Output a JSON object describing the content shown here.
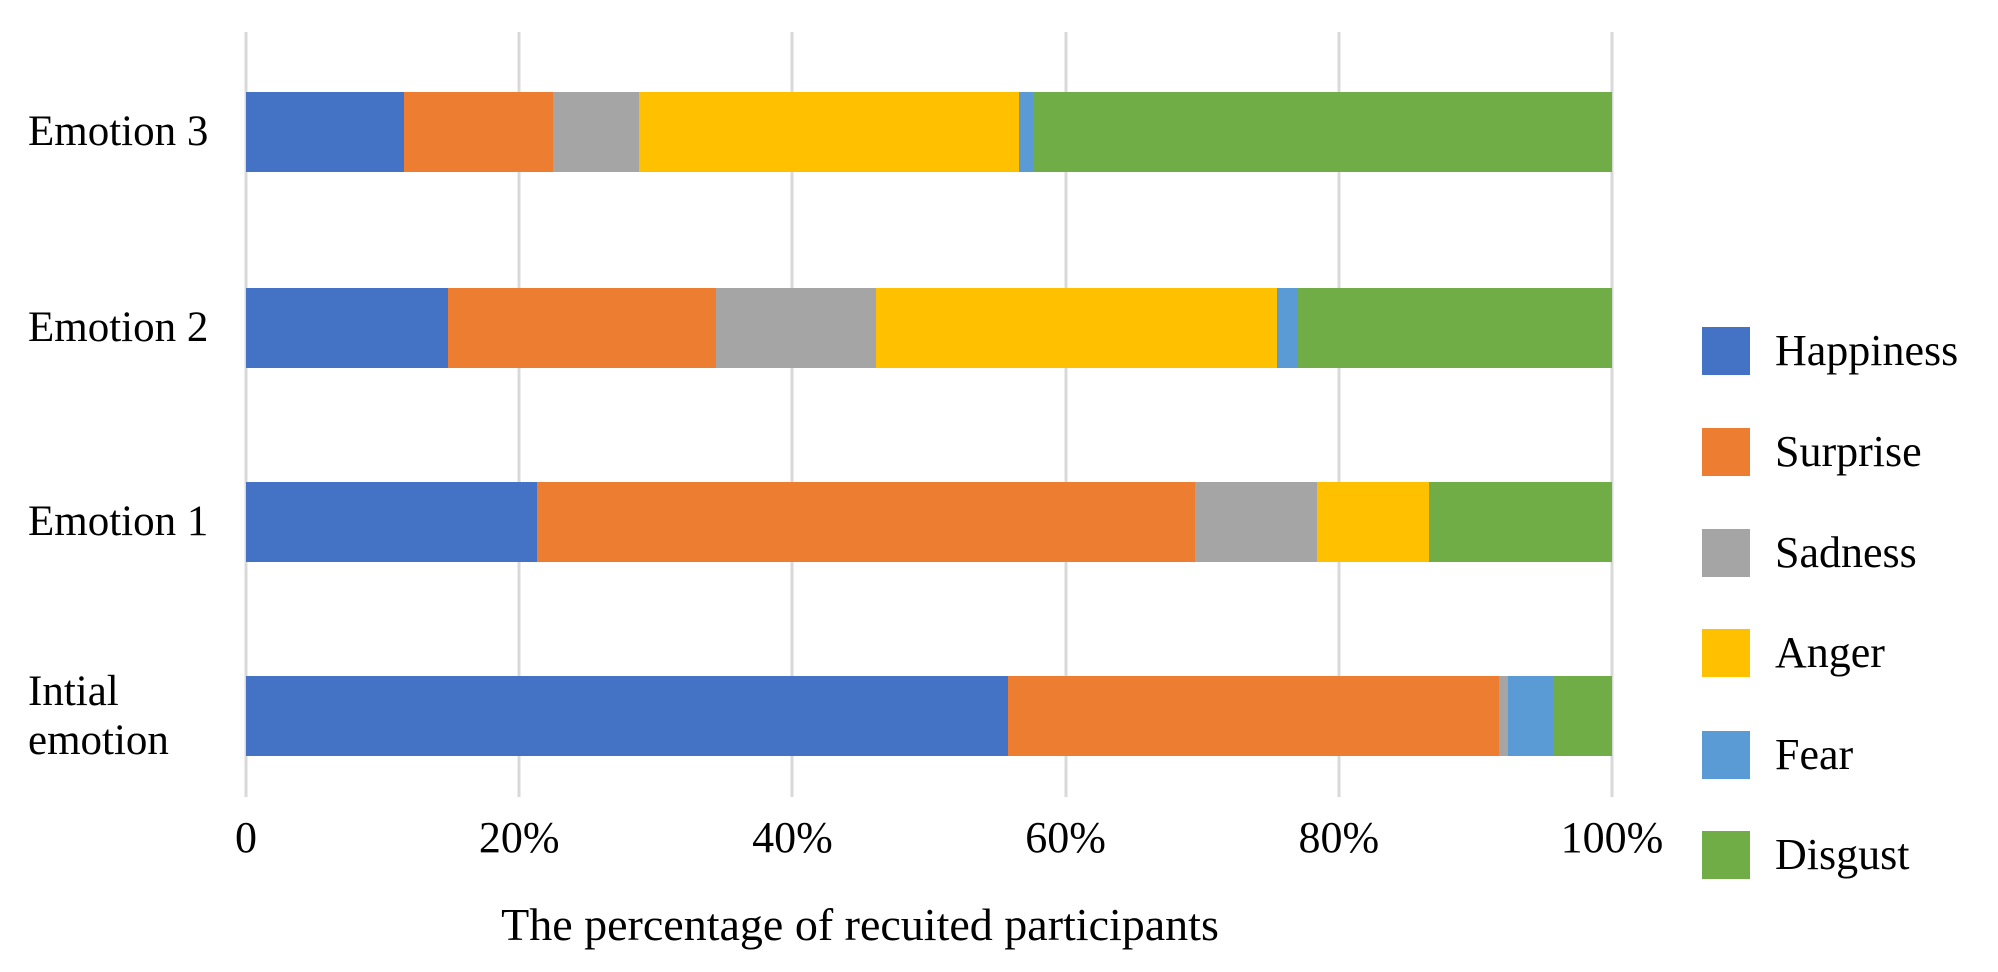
{
  "chart_data": {
    "type": "bar",
    "orientation": "horizontal",
    "stacked": true,
    "title": "",
    "xlabel": "The percentage of recuited participants",
    "ylabel": "",
    "categories": [
      "Emotion 3",
      "Emotion 2",
      "Emotion 1",
      "Intial emotion"
    ],
    "series": [
      {
        "name": "Happiness",
        "color": "#4472C4",
        "values": [
          11.6,
          14.8,
          21.3,
          55.8
        ]
      },
      {
        "name": "Surprise",
        "color": "#ED7D31",
        "values": [
          10.9,
          19.6,
          48.2,
          35.9
        ]
      },
      {
        "name": "Sadness",
        "color": "#A5A5A5",
        "values": [
          6.3,
          11.7,
          8.9,
          0.7
        ]
      },
      {
        "name": "Anger",
        "color": "#FFC000",
        "values": [
          27.8,
          29.4,
          8.2,
          0
        ]
      },
      {
        "name": "Fear",
        "color": "#5B9BD5",
        "values": [
          1.0,
          1.5,
          0,
          3.3
        ]
      },
      {
        "name": "Disgust",
        "color": "#70AD47",
        "values": [
          42.4,
          23.0,
          13.4,
          4.3
        ]
      }
    ],
    "x_ticks": [
      "0",
      "20%",
      "40%",
      "60%",
      "80%",
      "100%"
    ],
    "xlim": [
      0,
      100
    ],
    "grid": true,
    "gridline_color": "#D9D9D9",
    "legend_position": "right",
    "legend_entries": [
      "Happiness",
      "Surprise",
      "Sadness",
      "Anger",
      "Fear",
      "Disgust"
    ]
  }
}
